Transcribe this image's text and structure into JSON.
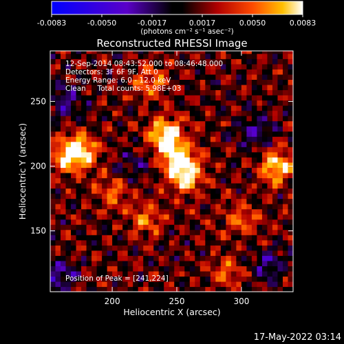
{
  "chart_data": {
    "type": "heatmap",
    "title": "Reconstructed RHESSI Image",
    "xlabel": "Heliocentric X (arcsec)",
    "ylabel": "Heliocentric Y (arcsec)",
    "xlim": [
      152,
      340
    ],
    "ylim": [
      103,
      289
    ],
    "x_ticks": [
      200,
      250,
      300
    ],
    "y_ticks": [
      150,
      200,
      250
    ],
    "colorbar": {
      "colormap": "black-body (blue negative)",
      "ticks": [
        "-0.0083",
        "-0.0050",
        "-0.0017",
        "0.0017",
        "0.0050",
        "0.0083"
      ],
      "unit_label": "(photons cm⁻² s⁻¹ asec⁻²)",
      "range": [
        -0.0083,
        0.0083
      ]
    },
    "annotations": [
      "12-Sep-2014 08:43:52.000 to 08:46:48.000",
      "Detectors: 3F 6F 9F, Att 0",
      "Energy Range: 6.0 - 12.0 keV",
      "Clean     Total counts: 5.98E+03",
      "Position of Peak = [241,224]"
    ],
    "peak": {
      "x": 241,
      "y": 224
    },
    "hotspots": [
      {
        "x": 241,
        "y": 224,
        "value": 0.0083
      },
      {
        "x": 252,
        "y": 205,
        "value": 0.0068
      },
      {
        "x": 258,
        "y": 192,
        "value": 0.0058
      },
      {
        "x": 176,
        "y": 212,
        "value": 0.0062
      },
      {
        "x": 164,
        "y": 208,
        "value": 0.0052
      },
      {
        "x": 328,
        "y": 200,
        "value": 0.0066
      },
      {
        "x": 230,
        "y": 265,
        "value": 0.004
      },
      {
        "x": 200,
        "y": 180,
        "value": 0.0036
      },
      {
        "x": 226,
        "y": 160,
        "value": 0.0038
      },
      {
        "x": 300,
        "y": 160,
        "value": 0.0034
      },
      {
        "x": 290,
        "y": 118,
        "value": 0.0032
      }
    ],
    "negative_regions": [
      {
        "x": 163,
        "y": 252,
        "value": -0.0035
      },
      {
        "x": 160,
        "y": 115,
        "value": -0.0038
      },
      {
        "x": 310,
        "y": 228,
        "value": -0.0034
      },
      {
        "x": 322,
        "y": 124,
        "value": -0.0036
      },
      {
        "x": 215,
        "y": 200,
        "value": -0.0022
      }
    ]
  },
  "footer": {
    "timestamp": "17-May-2022 03:14"
  }
}
